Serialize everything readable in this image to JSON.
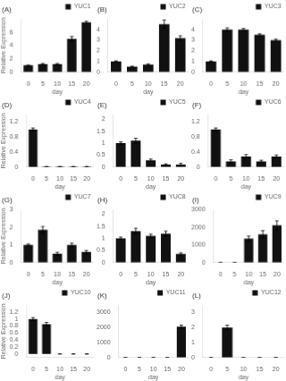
{
  "chart_data": [
    {
      "type": "bar",
      "title": "(A)",
      "categories": [
        "0",
        "5",
        "10",
        "15",
        "20"
      ],
      "series": [
        {
          "name": "YUC1",
          "color": "#111111",
          "values": [
            1.0,
            1.2,
            1.2,
            5.0,
            7.5
          ],
          "errors": [
            0.05,
            0.1,
            0.1,
            0.35,
            0.15
          ]
        }
      ],
      "xlabel": "day",
      "ylabel": "Relative Expression",
      "ylim": [
        0,
        8
      ],
      "yticks": [
        0,
        2,
        4,
        6
      ],
      "grid": false,
      "legend": "upper right"
    },
    {
      "type": "bar",
      "title": "(B)",
      "categories": [
        "0",
        "5",
        "10",
        "15",
        "20"
      ],
      "series": [
        {
          "name": "YUC2",
          "color": "#111111",
          "values": [
            1.0,
            0.5,
            0.7,
            4.5,
            3.2
          ],
          "errors": [
            0.05,
            0.05,
            0.05,
            0.4,
            0.2
          ]
        }
      ],
      "xlabel": "day",
      "ylim": [
        0,
        5
      ],
      "yticks": [
        0,
        1,
        2,
        3,
        4
      ],
      "grid": false,
      "legend": "upper right"
    },
    {
      "type": "bar",
      "title": "(C)",
      "categories": [
        "0",
        "5",
        "10",
        "15",
        "20"
      ],
      "series": [
        {
          "name": "YUC3",
          "color": "#111111",
          "values": [
            1.0,
            4.0,
            4.0,
            3.5,
            3.0
          ],
          "errors": [
            0.05,
            0.15,
            0.1,
            0.1,
            0.1
          ]
        }
      ],
      "xlabel": "day",
      "ylim": [
        0,
        5
      ],
      "yticks": [
        0,
        1,
        2,
        3,
        4
      ],
      "grid": false,
      "legend": "upper right"
    },
    {
      "type": "bar",
      "title": "(D)",
      "categories": [
        "0",
        "5",
        "10",
        "15",
        "20"
      ],
      "series": [
        {
          "name": "YUC4",
          "color": "#111111",
          "values": [
            1.0,
            0.01,
            0.01,
            0.01,
            0.01
          ],
          "errors": [
            0.04,
            0.002,
            0.002,
            0.002,
            0.002
          ]
        }
      ],
      "xlabel": "day",
      "ylabel": "Relative Expression",
      "ylim": [
        0,
        1.4
      ],
      "yticks": [
        0,
        0.4,
        0.8,
        1.2
      ],
      "grid": false,
      "legend": "upper right"
    },
    {
      "type": "bar",
      "title": "(E)",
      "categories": [
        "0",
        "5",
        "10",
        "15",
        "20"
      ],
      "series": [
        {
          "name": "YUC5",
          "color": "#111111",
          "values": [
            1.0,
            1.1,
            0.28,
            0.1,
            0.1
          ],
          "errors": [
            0.05,
            0.1,
            0.05,
            0.03,
            0.05
          ]
        }
      ],
      "xlabel": "day",
      "ylim": [
        0,
        2.2
      ],
      "yticks": [
        0,
        0.5,
        1,
        1.5,
        2
      ],
      "grid": false,
      "legend": "upper right"
    },
    {
      "type": "bar",
      "title": "(F)",
      "categories": [
        "0",
        "5",
        "10",
        "15",
        "20"
      ],
      "series": [
        {
          "name": "YUC6",
          "color": "#111111",
          "values": [
            1.0,
            0.15,
            0.28,
            0.15,
            0.28
          ],
          "errors": [
            0.04,
            0.04,
            0.05,
            0.03,
            0.04
          ]
        }
      ],
      "xlabel": "day",
      "ylim": [
        0,
        1.4
      ],
      "yticks": [
        0,
        0.4,
        0.8,
        1.2
      ],
      "grid": false,
      "legend": "upper right"
    },
    {
      "type": "bar",
      "title": "(G)",
      "categories": [
        "0",
        "5",
        "10",
        "15",
        "20"
      ],
      "series": [
        {
          "name": "YUC7",
          "color": "#111111",
          "values": [
            1.0,
            1.85,
            0.5,
            1.0,
            0.6
          ],
          "errors": [
            0.05,
            0.18,
            0.08,
            0.1,
            0.08
          ]
        }
      ],
      "xlabel": "day",
      "ylabel": "Relative Expression",
      "ylim": [
        0,
        3.0
      ],
      "yticks": [
        0,
        1,
        2,
        3
      ],
      "grid": false,
      "legend": "upper right"
    },
    {
      "type": "bar",
      "title": "(H)",
      "categories": [
        "0",
        "5",
        "10",
        "15",
        "20"
      ],
      "series": [
        {
          "name": "YUC8",
          "color": "#111111",
          "values": [
            1.0,
            1.3,
            1.1,
            1.2,
            0.35
          ],
          "errors": [
            0.05,
            0.12,
            0.08,
            0.1,
            0.05
          ]
        }
      ],
      "xlabel": "day",
      "ylim": [
        0,
        2.2
      ],
      "yticks": [
        0,
        0.5,
        1,
        1.5,
        2
      ],
      "grid": false,
      "legend": "upper right"
    },
    {
      "type": "bar",
      "title": "(I)",
      "categories": [
        "0",
        "5",
        "10",
        "15",
        "20"
      ],
      "series": [
        {
          "name": "YUC9",
          "color": "#111111",
          "values": [
            0,
            0,
            1350,
            1600,
            2100
          ],
          "errors": [
            0,
            0,
            150,
            200,
            250
          ]
        }
      ],
      "xlabel": "day",
      "ylim": [
        0,
        3000
      ],
      "yticks": [
        0,
        1000,
        2000,
        3000
      ],
      "grid": false,
      "legend": "upper right"
    },
    {
      "type": "bar",
      "title": "(J)",
      "categories": [
        "0",
        "5",
        "10",
        "15",
        "20"
      ],
      "series": [
        {
          "name": "YUC10",
          "color": "#111111",
          "values": [
            1.0,
            0.85,
            0.0,
            0.0,
            0.0
          ],
          "errors": [
            0.04,
            0.05,
            0.0,
            0.0,
            0.0
          ]
        }
      ],
      "xlabel": "day",
      "ylabel": "Relative Expression",
      "ylim": [
        -0.1,
        1.4
      ],
      "yticks": [
        0,
        0.2,
        0.4,
        0.6,
        0.8,
        1,
        1.2
      ],
      "grid": false,
      "legend": "upper right"
    },
    {
      "type": "bar",
      "title": "(K)",
      "categories": [
        "0",
        "5",
        "10",
        "15",
        "20"
      ],
      "series": [
        {
          "name": "YUC11",
          "color": "#111111",
          "values": [
            0,
            0,
            0,
            0,
            2050
          ],
          "errors": [
            0,
            0,
            0,
            0,
            100
          ]
        }
      ],
      "xlabel": "day",
      "ylim": [
        0,
        3500
      ],
      "yticks": [
        0,
        1000,
        2000,
        3000
      ],
      "grid": false,
      "legend": "upper right"
    },
    {
      "type": "bar",
      "title": "(L)",
      "categories": [
        "0",
        "5",
        "10",
        "15",
        "20"
      ],
      "series": [
        {
          "name": "YUC12",
          "color": "#111111",
          "values": [
            0,
            2.0,
            0,
            0,
            0
          ],
          "errors": [
            0,
            0.15,
            0,
            0,
            0
          ]
        }
      ],
      "xlabel": "day",
      "ylim": [
        0,
        3.5
      ],
      "yticks": [
        0,
        1,
        2,
        3
      ],
      "grid": false,
      "legend": "upper right"
    }
  ]
}
